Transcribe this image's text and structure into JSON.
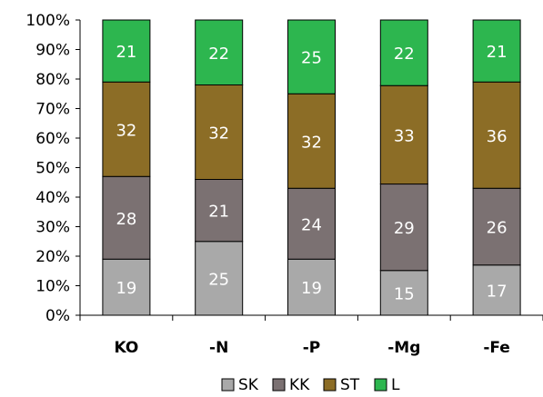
{
  "chart_data": {
    "type": "bar",
    "stacked": true,
    "percent": true,
    "categories": [
      "KO",
      "-N",
      "-P",
      "-Mg",
      "-Fe"
    ],
    "series": [
      {
        "name": "SK",
        "values": [
          19,
          25,
          19,
          15,
          17
        ],
        "color": "#a9a9a9"
      },
      {
        "name": "KK",
        "values": [
          28,
          21,
          24,
          29,
          26
        ],
        "color": "#7b7172"
      },
      {
        "name": "ST",
        "values": [
          32,
          32,
          32,
          33,
          36
        ],
        "color": "#8c6d26"
      },
      {
        "name": "L",
        "values": [
          21,
          22,
          25,
          22,
          21
        ],
        "color": "#2db64f"
      }
    ],
    "ylim": [
      0,
      100
    ],
    "yticks": [
      "0%",
      "10%",
      "20%",
      "30%",
      "40%",
      "50%",
      "60%",
      "70%",
      "80%",
      "90%",
      "100%"
    ],
    "grid": false,
    "legend": "bottom",
    "title": "",
    "xlabel": "",
    "ylabel": ""
  }
}
